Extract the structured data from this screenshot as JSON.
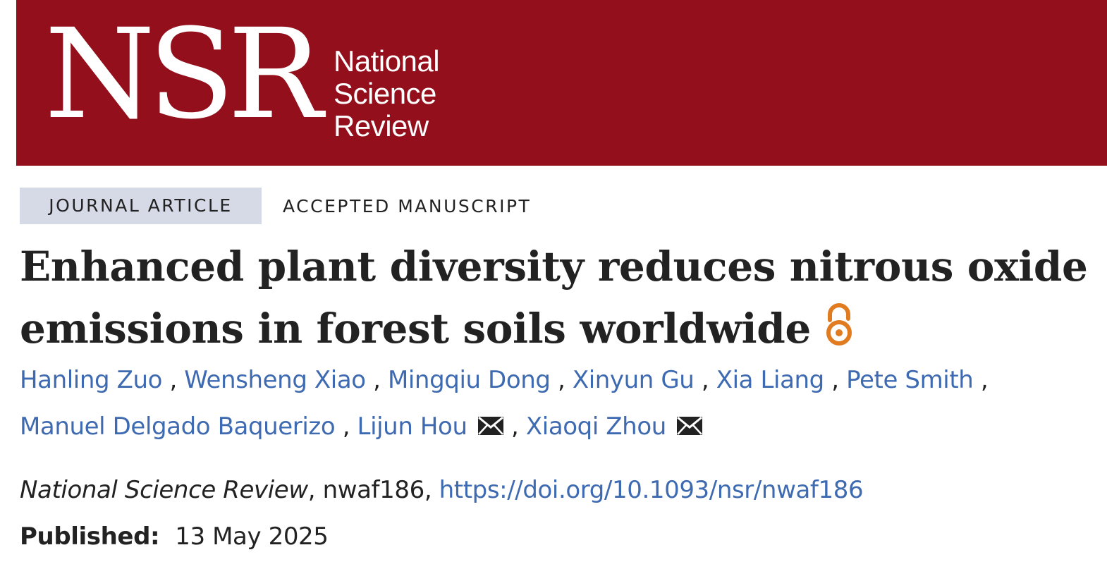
{
  "header": {
    "logo_mark": "NSR",
    "logo_words": [
      "National",
      "Science",
      "Review"
    ],
    "brand_color": "#930f1b"
  },
  "article": {
    "type_label": "JOURNAL ARTICLE",
    "status_label": "ACCEPTED MANUSCRIPT",
    "title": "Enhanced plant diversity reduces nitrous oxide emissions in forest soils worldwide",
    "open_access_icon": "open-access-icon",
    "authors_line1": [
      "Hanling Zuo",
      "Wensheng Xiao",
      "Mingqiu Dong",
      "Xinyun Gu",
      "Xia Liang",
      "Pete Smith"
    ],
    "authors_line2": [
      "Manuel Delgado Baquerizo",
      "Lijun Hou",
      "Xiaoqi Zhou"
    ],
    "corresponding_icon": "envelope-icon",
    "separator": ",",
    "journal": "National Science Review",
    "article_id": "nwaf186",
    "doi": "https://doi.org/10.1093/nsr/nwaf186",
    "published_label": "Published:",
    "published_date": "13 May 2025",
    "link_color": "#3e6ab1",
    "accent_color": "#e07b1f"
  }
}
